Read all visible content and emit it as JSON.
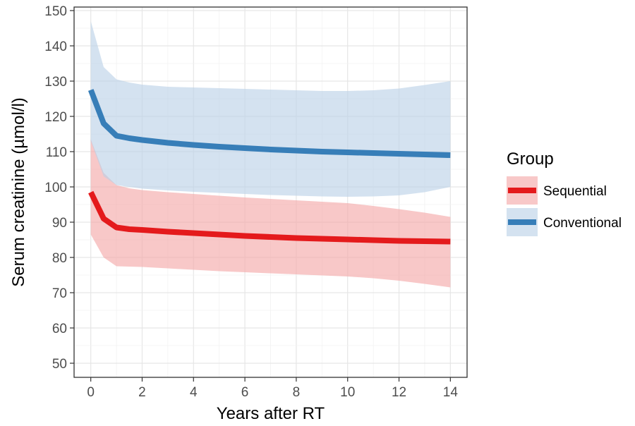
{
  "chart_data": {
    "type": "line",
    "xlabel": "Years after RT",
    "ylabel": "Serum creatinine (µmol/l)",
    "xlim": [
      -0.65,
      14.65
    ],
    "ylim": [
      46,
      151
    ],
    "x_ticks": [
      0,
      2,
      4,
      6,
      8,
      10,
      12,
      14
    ],
    "x_tick_labels": [
      "0",
      "2",
      "4",
      "6",
      "8",
      "10",
      "12",
      "14"
    ],
    "y_ticks": [
      50,
      60,
      70,
      80,
      90,
      100,
      110,
      120,
      130,
      140,
      150
    ],
    "y_tick_labels": [
      "50",
      "60",
      "70",
      "80",
      "90",
      "100",
      "110",
      "120",
      "130",
      "140",
      "150"
    ],
    "grid": true,
    "legend": {
      "title": "Group",
      "placement": "right",
      "entries": [
        "Sequential",
        "Conventional"
      ]
    },
    "x": [
      0,
      0.5,
      1,
      1.5,
      2,
      3,
      4,
      5,
      6,
      7,
      8,
      9,
      10,
      11,
      12,
      13,
      14
    ],
    "series": [
      {
        "name": "Sequential",
        "color": "#e41a1c",
        "band_color": "#f4a6a7",
        "values": [
          98.5,
          91,
          88.5,
          88,
          87.8,
          87.3,
          86.9,
          86.5,
          86.1,
          85.8,
          85.5,
          85.3,
          85.1,
          84.9,
          84.7,
          84.6,
          84.5
        ],
        "lower": [
          86.5,
          80,
          77.5,
          77.4,
          77.3,
          76.9,
          76.5,
          76.1,
          75.8,
          75.5,
          75.2,
          74.9,
          74.6,
          74.1,
          73.4,
          72.5,
          71.5
        ],
        "upper": [
          113.5,
          104,
          100.5,
          99.6,
          99.1,
          98.5,
          98,
          97.5,
          97,
          96.6,
          96.2,
          95.8,
          95.4,
          94.6,
          93.7,
          92.7,
          91.5
        ]
      },
      {
        "name": "Conventional",
        "color": "#377eb8",
        "band_color": "#b9d1e7",
        "values": [
          127.5,
          118,
          114.5,
          113.8,
          113.3,
          112.5,
          111.9,
          111.4,
          111,
          110.6,
          110.3,
          110,
          109.8,
          109.6,
          109.4,
          109.2,
          109
        ],
        "lower": [
          113,
          103,
          100.5,
          100,
          99.5,
          99,
          98.6,
          98.3,
          98,
          97.7,
          97.5,
          97.3,
          97.2,
          97.3,
          97.6,
          98.5,
          100
        ],
        "upper": [
          147,
          134,
          130.5,
          129.6,
          129,
          128.4,
          128.2,
          128,
          127.8,
          127.6,
          127.4,
          127.2,
          127.2,
          127.4,
          127.9,
          128.9,
          130
        ]
      }
    ]
  }
}
